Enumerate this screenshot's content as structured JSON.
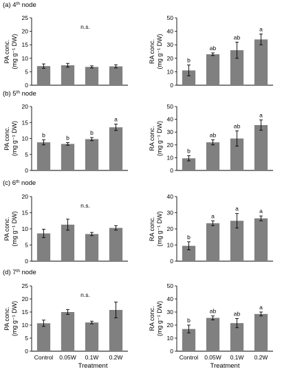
{
  "rows": [
    {
      "label_pre": "(a) 4",
      "label_sup": "th",
      "label_post": " node"
    },
    {
      "label_pre": "(b) 5",
      "label_sup": "th",
      "label_post": " node"
    },
    {
      "label_pre": "(c) 6",
      "label_sup": "th",
      "label_post": " node"
    },
    {
      "label_pre": "(d) 7",
      "label_sup": "th",
      "label_post": " node"
    }
  ],
  "xlabel": "Treatment",
  "bar_color": "#808080",
  "chart_data": [
    {
      "type": "bar",
      "title": "(a) 4th node",
      "categories": [
        "Control",
        "0.05W",
        "0.1W",
        "0.2W"
      ],
      "ylabel_line1": "PA conc.",
      "ylabel_line2": "(mg g⁻¹ DW)",
      "ylim": [
        0,
        25
      ],
      "yticks": [
        0,
        5,
        10,
        15,
        20,
        25
      ],
      "values": [
        7.1,
        7.4,
        6.8,
        7.0
      ],
      "errors": [
        0.8,
        0.7,
        0.4,
        0.6
      ],
      "letters": [
        "",
        "",
        "",
        ""
      ],
      "annotation": "n.s."
    },
    {
      "type": "bar",
      "title": "(a) 4th node",
      "categories": [
        "Control",
        "0.05W",
        "0.1W",
        "0.2W"
      ],
      "ylabel_line1": "RA conc.",
      "ylabel_line2": "(mg g⁻¹ DW)",
      "ylim": [
        0,
        50
      ],
      "yticks": [
        0,
        10,
        20,
        30,
        40,
        50
      ],
      "values": [
        11,
        23,
        26,
        34
      ],
      "errors": [
        4,
        1,
        6,
        4
      ],
      "letters": [
        "b",
        "ab",
        "ab",
        "a"
      ],
      "annotation": ""
    },
    {
      "type": "bar",
      "title": "(b) 5th node",
      "categories": [
        "Control",
        "0.05W",
        "0.1W",
        "0.2W"
      ],
      "ylabel_line1": "PA conc.",
      "ylabel_line2": "(mg g⁻¹ DW)",
      "ylim": [
        0,
        20
      ],
      "yticks": [
        0,
        5,
        10,
        15,
        20
      ],
      "values": [
        8.8,
        8.3,
        9.8,
        13.5
      ],
      "errors": [
        0.8,
        0.4,
        0.5,
        1.0
      ],
      "letters": [
        "b",
        "b",
        "b",
        "a"
      ],
      "annotation": ""
    },
    {
      "type": "bar",
      "title": "(b) 5th node",
      "categories": [
        "Control",
        "0.05W",
        "0.1W",
        "0.2W"
      ],
      "ylabel_line1": "RA conc.",
      "ylabel_line2": "(mg g⁻¹ DW)",
      "ylim": [
        0,
        50
      ],
      "yticks": [
        0,
        10,
        20,
        30,
        40,
        50
      ],
      "values": [
        9.5,
        22,
        25,
        35.5
      ],
      "errors": [
        2,
        2,
        6,
        4
      ],
      "letters": [
        "b",
        "ab",
        "ab",
        "a"
      ],
      "annotation": ""
    },
    {
      "type": "bar",
      "title": "(c) 6th node",
      "categories": [
        "Control",
        "0.05W",
        "0.1W",
        "0.2W"
      ],
      "ylabel_line1": "PA conc.",
      "ylabel_line2": "(mg g⁻¹ DW)",
      "ylim": [
        0,
        20
      ],
      "yticks": [
        0,
        5,
        10,
        15,
        20
      ],
      "values": [
        8.6,
        11.3,
        8.4,
        10.3
      ],
      "errors": [
        1.3,
        1.7,
        0.5,
        0.7
      ],
      "letters": [
        "",
        "",
        "",
        ""
      ],
      "annotation": "n.s."
    },
    {
      "type": "bar",
      "title": "(c) 6th node",
      "categories": [
        "Control",
        "0.05W",
        "0.1W",
        "0.2W"
      ],
      "ylabel_line1": "RA conc.",
      "ylabel_line2": "(mg g⁻¹ DW)",
      "ylim": [
        0,
        40
      ],
      "yticks": [
        0,
        10,
        20,
        30,
        40
      ],
      "values": [
        9.5,
        23.5,
        25,
        26.5
      ],
      "errors": [
        2.5,
        1.5,
        4.5,
        1.5
      ],
      "letters": [
        "b",
        "a",
        "a",
        "a"
      ],
      "annotation": ""
    },
    {
      "type": "bar",
      "title": "(d) 7th node",
      "categories": [
        "Control",
        "0.05W",
        "0.1W",
        "0.2W"
      ],
      "ylabel_line1": "PA conc.",
      "ylabel_line2": "(mg g⁻¹ DW)",
      "ylim": [
        0,
        25
      ],
      "yticks": [
        0,
        5,
        10,
        15,
        20,
        25
      ],
      "values": [
        10.7,
        15.0,
        11.0,
        15.8
      ],
      "errors": [
        1.2,
        0.9,
        0.5,
        3.0
      ],
      "letters": [
        "",
        "",
        "",
        ""
      ],
      "annotation": "n.s."
    },
    {
      "type": "bar",
      "title": "(d) 7th node",
      "categories": [
        "Control",
        "0.05W",
        "0.1W",
        "0.2W"
      ],
      "ylabel_line1": "RA conc.",
      "ylabel_line2": "(mg g⁻¹ DW)",
      "ylim": [
        0,
        50
      ],
      "yticks": [
        0,
        10,
        20,
        30,
        40,
        50
      ],
      "values": [
        17,
        25.5,
        21.5,
        28.5
      ],
      "errors": [
        3,
        1.5,
        3.5,
        1.5
      ],
      "letters": [
        "b",
        "ab",
        "ab",
        "a"
      ],
      "annotation": ""
    }
  ]
}
